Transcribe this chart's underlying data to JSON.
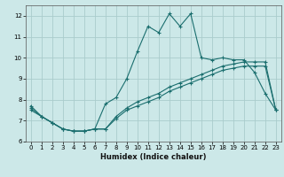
{
  "xlabel": "Humidex (Indice chaleur)",
  "bg_color": "#cce8e8",
  "grid_color": "#aacccc",
  "line_color": "#1a6e6e",
  "xlim": [
    -0.5,
    23.5
  ],
  "ylim": [
    6,
    12.5
  ],
  "yticks": [
    6,
    7,
    8,
    9,
    10,
    11,
    12
  ],
  "xticks": [
    0,
    1,
    2,
    3,
    4,
    5,
    6,
    7,
    8,
    9,
    10,
    11,
    12,
    13,
    14,
    15,
    16,
    17,
    18,
    19,
    20,
    21,
    22,
    23
  ],
  "line1_x": [
    0,
    1,
    2,
    3,
    4,
    5,
    6,
    7,
    8,
    9,
    10,
    11,
    12,
    13,
    14,
    15,
    16,
    17,
    18,
    19,
    20,
    21,
    22,
    23
  ],
  "line1_y": [
    7.7,
    7.2,
    6.9,
    6.6,
    6.5,
    6.5,
    6.6,
    7.8,
    8.1,
    9.0,
    10.3,
    11.5,
    11.2,
    12.1,
    11.5,
    12.1,
    10.0,
    9.9,
    10.0,
    9.9,
    9.9,
    9.3,
    8.3,
    7.5
  ],
  "line2_x": [
    0,
    1,
    2,
    3,
    4,
    5,
    6,
    7,
    8,
    9,
    10,
    11,
    12,
    13,
    14,
    15,
    16,
    17,
    18,
    19,
    20,
    21,
    22,
    23
  ],
  "line2_y": [
    7.5,
    7.2,
    6.9,
    6.6,
    6.5,
    6.5,
    6.6,
    6.6,
    7.2,
    7.6,
    7.9,
    8.1,
    8.3,
    8.6,
    8.8,
    9.0,
    9.2,
    9.4,
    9.6,
    9.7,
    9.8,
    9.8,
    9.8,
    7.5
  ],
  "line3_x": [
    0,
    1,
    2,
    3,
    4,
    5,
    6,
    7,
    8,
    9,
    10,
    11,
    12,
    13,
    14,
    15,
    16,
    17,
    18,
    19,
    20,
    21,
    22,
    23
  ],
  "line3_y": [
    7.6,
    7.2,
    6.9,
    6.6,
    6.5,
    6.5,
    6.6,
    6.6,
    7.1,
    7.5,
    7.7,
    7.9,
    8.1,
    8.4,
    8.6,
    8.8,
    9.0,
    9.2,
    9.4,
    9.5,
    9.6,
    9.6,
    9.6,
    7.5
  ]
}
